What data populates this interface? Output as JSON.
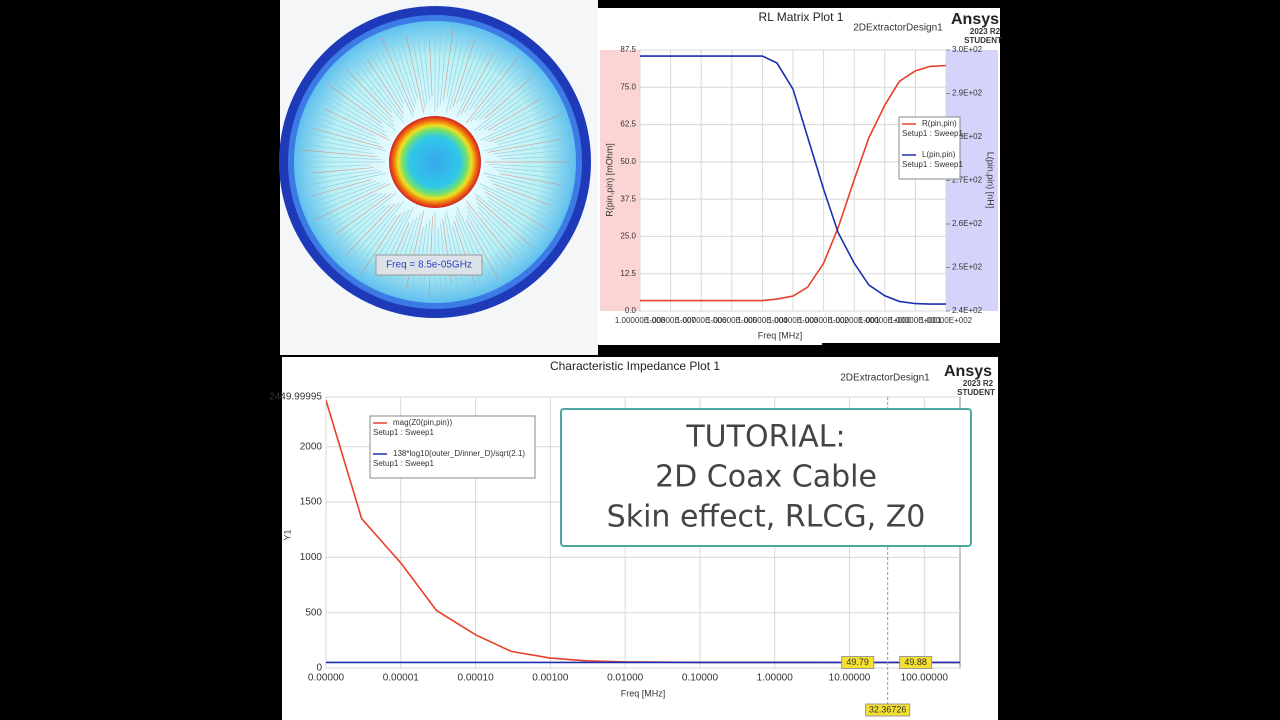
{
  "field_plot": {
    "label": "Freq = 8.5e-05GHz"
  },
  "banner": {
    "lines": [
      "TUTORIAL:",
      "2D Coax Cable",
      "Skin effect, RLCG, Z0"
    ]
  },
  "chart_data": [
    {
      "type": "line",
      "title": "RL Matrix Plot 1",
      "subtitle": "2DExtractorDesign1",
      "logo": {
        "name": "Ansys",
        "version": "2023 R2",
        "edition": "STUDENT"
      },
      "x_label": "Freq [MHz]",
      "y_label": "R(pin,pin) [mOhm]",
      "y2_label": "L(pin,pin) [nH]",
      "xscale": "log",
      "grid": true,
      "x": [
        1e-08,
        1e-07,
        1e-06,
        1e-05,
        0.0001,
        0.0003,
        0.001,
        0.003,
        0.01,
        0.03,
        0.1,
        0.3,
        1,
        3,
        10,
        30,
        100
      ],
      "xlim": [
        1e-08,
        100
      ],
      "xticks": [
        {
          "value": 1e-08,
          "label": "1.00000E-008"
        },
        {
          "value": 1e-07,
          "label": "1.00000E-007"
        },
        {
          "value": 1e-06,
          "label": "1.00000E-006"
        },
        {
          "value": 1e-05,
          "label": "1.00000E-005"
        },
        {
          "value": 0.0001,
          "label": "1.00000E-004"
        },
        {
          "value": 0.001,
          "label": "1.00000E-003"
        },
        {
          "value": 0.01,
          "label": "1.00000E-002"
        },
        {
          "value": 0.1,
          "label": "1.00000E-001"
        },
        {
          "value": 1,
          "label": "1.00000E+000"
        },
        {
          "value": 10,
          "label": "1.00000E+001"
        },
        {
          "value": 100,
          "label": "1.00000E+002"
        }
      ],
      "ylim": [
        0,
        87.5
      ],
      "yticks": [
        {
          "value": 0,
          "label": "0.0"
        },
        12.5,
        {
          "value": 25,
          "label": "25.0"
        },
        37.5,
        {
          "value": 50,
          "label": "50.0"
        },
        62.5,
        {
          "value": 75,
          "label": "75.0"
        },
        87.5
      ],
      "y2lim": [
        240,
        300
      ],
      "y2ticks": [
        {
          "value": 240,
          "label": "2.4E+02"
        },
        {
          "value": 250,
          "label": "2.5E+02"
        },
        {
          "value": 260,
          "label": "2.6E+02"
        },
        {
          "value": 270,
          "label": "2.7E+02"
        },
        {
          "value": 280,
          "label": "2.8E+02"
        },
        {
          "value": 290,
          "label": "2.9E+02"
        },
        {
          "value": 300,
          "label": "3.0E+02"
        }
      ],
      "series": [
        {
          "name": "R(pin,pin)",
          "subtext": "Setup1 : Sweep1",
          "color": "#e8402a",
          "values": [
            3.5,
            3.5,
            3.5,
            3.5,
            3.5,
            4,
            5,
            8,
            16,
            28,
            44,
            58,
            69,
            77,
            80.5,
            82,
            82.3
          ]
        },
        {
          "name": "L(pin,pin)",
          "subtext": "Setup1 : Sweep1",
          "color": "#1a2fb0",
          "axis": "y2",
          "values": [
            298.6,
            298.6,
            298.6,
            298.6,
            298.6,
            297,
            291,
            280,
            268,
            258,
            251,
            246,
            243.5,
            242.2,
            241.7,
            241.6,
            241.6
          ]
        }
      ]
    },
    {
      "type": "line",
      "title": "Characteristic Impedance Plot 1",
      "subtitle": "2DExtractorDesign1",
      "logo": {
        "name": "Ansys",
        "version": "2023 R2",
        "edition": "STUDENT"
      },
      "x_label": "Freq [MHz]",
      "y_label": "Y1",
      "xscale": "log",
      "grid": true,
      "x": [
        1e-06,
        3e-06,
        1e-05,
        3e-05,
        0.0001,
        0.0003,
        0.001,
        0.003,
        0.01,
        0.1,
        1,
        10,
        100,
        300
      ],
      "xlim": [
        1e-06,
        300
      ],
      "xticks": [
        {
          "value": 1e-06,
          "label": "0.00000"
        },
        {
          "value": 1e-05,
          "label": "0.00001"
        },
        {
          "value": 0.0001,
          "label": "0.00010"
        },
        {
          "value": 0.001,
          "label": "0.00100"
        },
        {
          "value": 0.01,
          "label": "0.01000"
        },
        {
          "value": 0.1,
          "label": "0.10000"
        },
        {
          "value": 1,
          "label": "1.00000"
        },
        {
          "value": 10,
          "label": "10.00000"
        },
        {
          "value": 100,
          "label": "100.00000"
        }
      ],
      "ylim": [
        0,
        2449.99995
      ],
      "yticks": [
        0,
        500,
        1000,
        1500,
        2000,
        2449.99995
      ],
      "series": [
        {
          "name": "mag(Z0(pin,pin))",
          "subtext": "Setup1 : Sweep1",
          "color": "#e8402a",
          "values": [
            2420,
            1350,
            950,
            520,
            300,
            150,
            90,
            65,
            55,
            50.5,
            49.9,
            49.8,
            49.79,
            49.79
          ]
        },
        {
          "name": "138*log10(outer_D/inner_D)/sqrt(2.1)",
          "subtext": "Setup1 : Sweep1",
          "color": "#1a2fb0",
          "values": [
            49.88,
            49.88,
            49.88,
            49.88,
            49.88,
            49.88,
            49.88,
            49.88,
            49.88,
            49.88,
            49.88,
            49.88,
            49.88,
            49.88
          ]
        }
      ],
      "marker": {
        "x": 32.36726,
        "values": [
          49.79,
          49.88
        ]
      }
    }
  ]
}
